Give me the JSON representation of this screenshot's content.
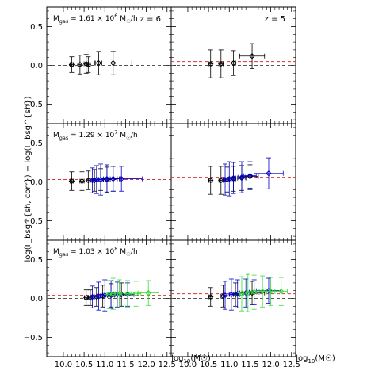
{
  "figure": {
    "ylabel": "log(Γ_bsg^{sh, corr}) − log(Γ_bsg^{sh})",
    "xlabel_main": "log",
    "xlabel_sub": "10",
    "xlabel_tail": "(M",
    "xlabel_sun": "☉",
    "xlabel_close": ")",
    "row_labels": [
      {
        "pre": "M",
        "sub": "gas",
        "mid": " = 1.61 × 10",
        "sup": "6",
        "post": " M",
        "sun": "☉",
        "end": "/h"
      },
      {
        "pre": "M",
        "sub": "gas",
        "mid": " = 1.29 × 10",
        "sup": "7",
        "post": " M",
        "sun": "☉",
        "end": "/h"
      },
      {
        "pre": "M",
        "sub": "gas",
        "mid": " = 1.03 × 10",
        "sup": "8",
        "post": " M",
        "sun": "☉",
        "end": "/h"
      }
    ],
    "column_labels": [
      "z = 6",
      "z = 5"
    ]
  },
  "colors": {
    "black_series": "#000000",
    "blue_series": "#0000cc",
    "green_series": "#33dd33",
    "red_ref": "#dd3333",
    "grey_zero": "#555555"
  },
  "chart_data": {
    "type": "scatter",
    "xlim": [
      9.6,
      12.6
    ],
    "ylim": [
      -0.75,
      0.75
    ],
    "xticks": [
      10.0,
      10.5,
      11.0,
      11.5,
      12.0,
      12.5
    ],
    "yticks": [
      -0.5,
      0.0,
      0.5
    ],
    "xtick_labels": [
      "10.0",
      "10.5",
      "11.0",
      "11.5",
      "12.0",
      "12.5"
    ],
    "ytick_labels": [
      "−0.5",
      "0.0",
      "0.5"
    ],
    "grid": false,
    "panels": [
      {
        "row": 0,
        "col": 0,
        "red_line": 0.03,
        "zero_line": 0.0,
        "series": [
          {
            "color": "black",
            "points": [
              {
                "x": 10.2,
                "y": 0.01,
                "yerr": 0.1,
                "xerr": 0.04
              },
              {
                "x": 10.4,
                "y": 0.01,
                "yerr": 0.12,
                "xerr": 0.05
              },
              {
                "x": 10.55,
                "y": 0.02,
                "yerr": 0.12,
                "xerr": 0.05
              },
              {
                "x": 10.6,
                "y": 0.01,
                "yerr": 0.1,
                "xerr": 0.05
              },
              {
                "x": 10.85,
                "y": 0.03,
                "yerr": 0.15,
                "xerr": 0.08
              },
              {
                "x": 11.2,
                "y": 0.03,
                "yerr": 0.15,
                "xerr": 0.45
              }
            ]
          }
        ]
      },
      {
        "row": 0,
        "col": 1,
        "red_line": 0.05,
        "zero_line": 0.0,
        "series": [
          {
            "color": "black",
            "points": [
              {
                "x": 10.55,
                "y": 0.02,
                "yerr": 0.18,
                "xerr": 0.04
              },
              {
                "x": 10.8,
                "y": 0.02,
                "yerr": 0.18,
                "xerr": 0.05
              },
              {
                "x": 11.1,
                "y": 0.03,
                "yerr": 0.16,
                "xerr": 0.06
              },
              {
                "x": 11.55,
                "y": 0.12,
                "yerr": 0.16,
                "xerr": 0.3
              }
            ]
          }
        ]
      },
      {
        "row": 1,
        "col": 0,
        "red_line": 0.03,
        "zero_line": 0.0,
        "series": [
          {
            "color": "black",
            "points": [
              {
                "x": 10.2,
                "y": 0.01,
                "yerr": 0.12,
                "xerr": 0.04
              },
              {
                "x": 10.45,
                "y": 0.01,
                "yerr": 0.12,
                "xerr": 0.05
              },
              {
                "x": 10.6,
                "y": 0.02,
                "yerr": 0.12,
                "xerr": 0.05
              },
              {
                "x": 10.75,
                "y": 0.02,
                "yerr": 0.14,
                "xerr": 0.06
              },
              {
                "x": 10.9,
                "y": 0.03,
                "yerr": 0.14,
                "xerr": 0.06
              },
              {
                "x": 11.05,
                "y": 0.03,
                "yerr": 0.16,
                "xerr": 0.08
              },
              {
                "x": 11.2,
                "y": 0.04,
                "yerr": 0.16,
                "xerr": 0.15
              }
            ]
          },
          {
            "color": "blue",
            "points": [
              {
                "x": 10.7,
                "y": 0.02,
                "yerr": 0.16,
                "xerr": 0.05
              },
              {
                "x": 10.8,
                "y": 0.03,
                "yerr": 0.18,
                "xerr": 0.05
              },
              {
                "x": 10.9,
                "y": 0.03,
                "yerr": 0.2,
                "xerr": 0.06
              },
              {
                "x": 11.05,
                "y": 0.04,
                "yerr": 0.18,
                "xerr": 0.08
              },
              {
                "x": 11.2,
                "y": 0.04,
                "yerr": 0.16,
                "xerr": 0.1
              },
              {
                "x": 11.4,
                "y": 0.04,
                "yerr": 0.16,
                "xerr": 0.5
              }
            ]
          }
        ]
      },
      {
        "row": 1,
        "col": 1,
        "red_line": 0.06,
        "zero_line": 0.0,
        "series": [
          {
            "color": "black",
            "points": [
              {
                "x": 10.55,
                "y": 0.02,
                "yerr": 0.18,
                "xerr": 0.04
              },
              {
                "x": 10.8,
                "y": 0.02,
                "yerr": 0.18,
                "xerr": 0.05
              },
              {
                "x": 10.95,
                "y": 0.03,
                "yerr": 0.16,
                "xerr": 0.06
              },
              {
                "x": 11.1,
                "y": 0.04,
                "yerr": 0.16,
                "xerr": 0.06
              },
              {
                "x": 11.3,
                "y": 0.05,
                "yerr": 0.16,
                "xerr": 0.1
              },
              {
                "x": 11.5,
                "y": 0.07,
                "yerr": 0.15,
                "xerr": 0.2
              }
            ]
          },
          {
            "color": "blue",
            "points": [
              {
                "x": 10.9,
                "y": 0.03,
                "yerr": 0.2,
                "xerr": 0.05
              },
              {
                "x": 11.0,
                "y": 0.04,
                "yerr": 0.22,
                "xerr": 0.05
              },
              {
                "x": 11.1,
                "y": 0.05,
                "yerr": 0.2,
                "xerr": 0.06
              },
              {
                "x": 11.3,
                "y": 0.06,
                "yerr": 0.2,
                "xerr": 0.08
              },
              {
                "x": 11.5,
                "y": 0.08,
                "yerr": 0.18,
                "xerr": 0.15
              },
              {
                "x": 11.95,
                "y": 0.11,
                "yerr": 0.2,
                "xerr": 0.35
              }
            ]
          }
        ]
      },
      {
        "row": 2,
        "col": 0,
        "red_line": 0.04,
        "zero_line": 0.0,
        "series": [
          {
            "color": "black",
            "points": [
              {
                "x": 10.55,
                "y": 0.01,
                "yerr": 0.1,
                "xerr": 0.04
              },
              {
                "x": 10.65,
                "y": 0.01,
                "yerr": 0.1,
                "xerr": 0.05
              },
              {
                "x": 10.8,
                "y": 0.02,
                "yerr": 0.12,
                "xerr": 0.05
              },
              {
                "x": 10.95,
                "y": 0.03,
                "yerr": 0.14,
                "xerr": 0.06
              },
              {
                "x": 11.15,
                "y": 0.04,
                "yerr": 0.15,
                "xerr": 0.08
              },
              {
                "x": 11.4,
                "y": 0.05,
                "yerr": 0.15,
                "xerr": 0.15
              }
            ]
          },
          {
            "color": "blue",
            "points": [
              {
                "x": 10.7,
                "y": 0.02,
                "yerr": 0.14,
                "xerr": 0.05
              },
              {
                "x": 10.85,
                "y": 0.03,
                "yerr": 0.18,
                "xerr": 0.05
              },
              {
                "x": 11.0,
                "y": 0.04,
                "yerr": 0.2,
                "xerr": 0.06
              },
              {
                "x": 11.15,
                "y": 0.05,
                "yerr": 0.18,
                "xerr": 0.07
              },
              {
                "x": 11.3,
                "y": 0.05,
                "yerr": 0.16,
                "xerr": 0.08
              },
              {
                "x": 11.55,
                "y": 0.05,
                "yerr": 0.15,
                "xerr": 0.15
              }
            ]
          },
          {
            "color": "green",
            "points": [
              {
                "x": 11.1,
                "y": 0.05,
                "yerr": 0.18,
                "xerr": 0.05
              },
              {
                "x": 11.2,
                "y": 0.06,
                "yerr": 0.2,
                "xerr": 0.05
              },
              {
                "x": 11.35,
                "y": 0.06,
                "yerr": 0.18,
                "xerr": 0.06
              },
              {
                "x": 11.55,
                "y": 0.06,
                "yerr": 0.17,
                "xerr": 0.08
              },
              {
                "x": 11.75,
                "y": 0.06,
                "yerr": 0.16,
                "xerr": 0.12
              },
              {
                "x": 12.05,
                "y": 0.07,
                "yerr": 0.16,
                "xerr": 0.25
              }
            ]
          }
        ]
      },
      {
        "row": 2,
        "col": 1,
        "red_line": 0.06,
        "zero_line": 0.0,
        "series": [
          {
            "color": "black",
            "points": [
              {
                "x": 10.55,
                "y": 0.02,
                "yerr": 0.12,
                "xerr": 0.04
              },
              {
                "x": 10.85,
                "y": 0.03,
                "yerr": 0.14,
                "xerr": 0.05
              },
              {
                "x": 11.15,
                "y": 0.05,
                "yerr": 0.15,
                "xerr": 0.1
              },
              {
                "x": 11.55,
                "y": 0.07,
                "yerr": 0.15,
                "xerr": 0.3
              }
            ]
          },
          {
            "color": "blue",
            "points": [
              {
                "x": 10.9,
                "y": 0.04,
                "yerr": 0.18,
                "xerr": 0.05
              },
              {
                "x": 11.05,
                "y": 0.05,
                "yerr": 0.2,
                "xerr": 0.05
              },
              {
                "x": 11.2,
                "y": 0.06,
                "yerr": 0.18,
                "xerr": 0.06
              },
              {
                "x": 11.4,
                "y": 0.07,
                "yerr": 0.18,
                "xerr": 0.08
              },
              {
                "x": 11.6,
                "y": 0.08,
                "yerr": 0.16,
                "xerr": 0.12
              },
              {
                "x": 11.95,
                "y": 0.1,
                "yerr": 0.16,
                "xerr": 0.3
              }
            ]
          },
          {
            "color": "green",
            "points": [
              {
                "x": 11.3,
                "y": 0.06,
                "yerr": 0.22,
                "xerr": 0.05
              },
              {
                "x": 11.45,
                "y": 0.07,
                "yerr": 0.24,
                "xerr": 0.05
              },
              {
                "x": 11.6,
                "y": 0.08,
                "yerr": 0.22,
                "xerr": 0.06
              },
              {
                "x": 11.8,
                "y": 0.09,
                "yerr": 0.2,
                "xerr": 0.08
              },
              {
                "x": 12.0,
                "y": 0.09,
                "yerr": 0.18,
                "xerr": 0.1
              },
              {
                "x": 12.25,
                "y": 0.09,
                "yerr": 0.18,
                "xerr": 0.15
              }
            ]
          }
        ]
      }
    ]
  }
}
